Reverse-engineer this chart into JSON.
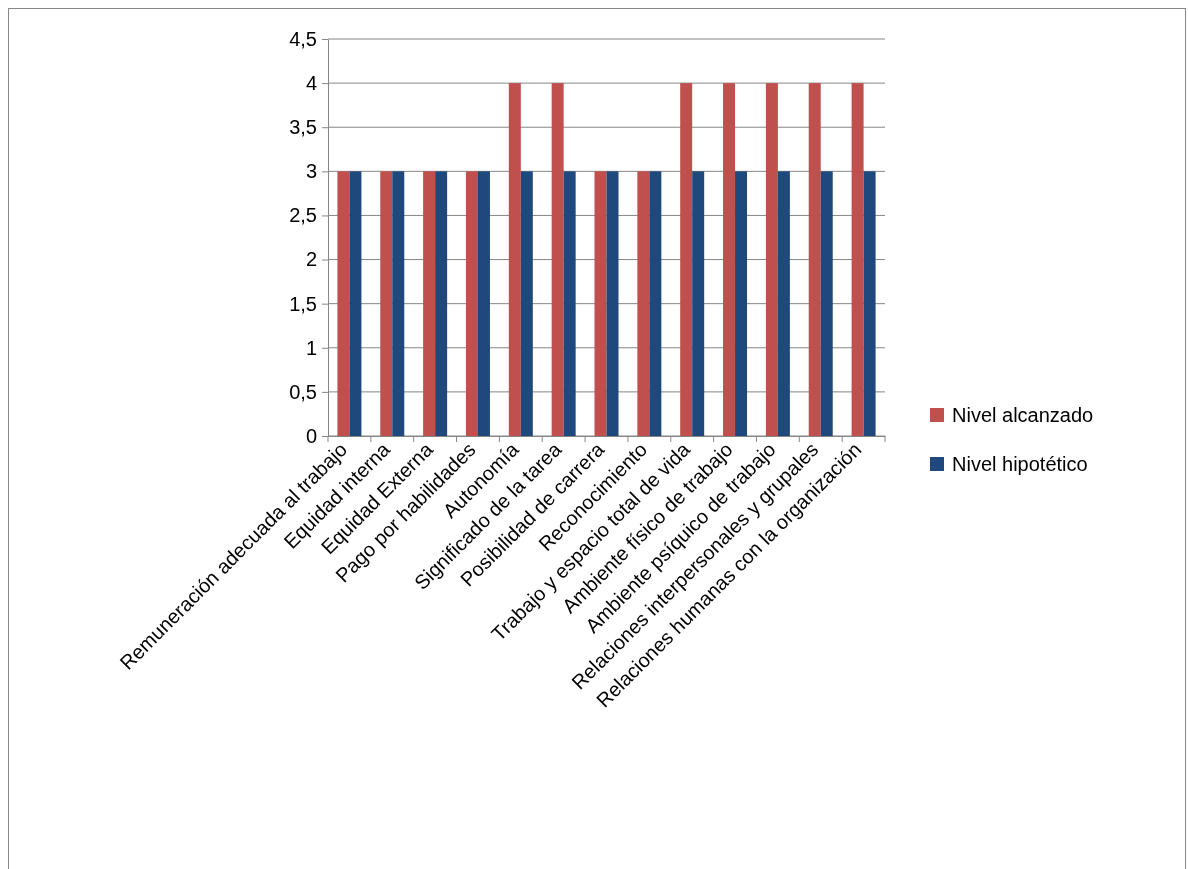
{
  "chart_data": {
    "type": "bar",
    "categories": [
      "Remuneración adecuada al trabajo",
      "Equidad interna",
      "Equidad Externa",
      "Pago por habilidades",
      "Autonomía",
      "Significado de la tarea",
      "Posibilidad de carrera",
      "Reconocimiento",
      "Trabajo y espacio total de vida",
      "Ambiente físico de trabajo",
      "Ambiente psíquico de trabajo",
      "Relaciones interpersonales y grupales",
      "Relaciones humanas con la organización"
    ],
    "series": [
      {
        "name": "Nivel alcanzado",
        "color": "#c0504d",
        "values": [
          3,
          3,
          3,
          3,
          4,
          4,
          3,
          3,
          4,
          4,
          4,
          4,
          4
        ]
      },
      {
        "name": "Nivel hipotético",
        "color": "#1f497d",
        "values": [
          3,
          3,
          3,
          3,
          3,
          3,
          3,
          3,
          3,
          3,
          3,
          3,
          3
        ]
      }
    ],
    "ylim": [
      0,
      4.5
    ],
    "yticks": [
      {
        "value": 0,
        "label": "0"
      },
      {
        "value": 0.5,
        "label": "0,5"
      },
      {
        "value": 1,
        "label": "1"
      },
      {
        "value": 1.5,
        "label": "1,5"
      },
      {
        "value": 2,
        "label": "2"
      },
      {
        "value": 2.5,
        "label": "2,5"
      },
      {
        "value": 3,
        "label": "3"
      },
      {
        "value": 3.5,
        "label": "3,5"
      },
      {
        "value": 4,
        "label": "4"
      },
      {
        "value": 4.5,
        "label": "4,5"
      }
    ],
    "grid": "y",
    "legend": "right"
  }
}
